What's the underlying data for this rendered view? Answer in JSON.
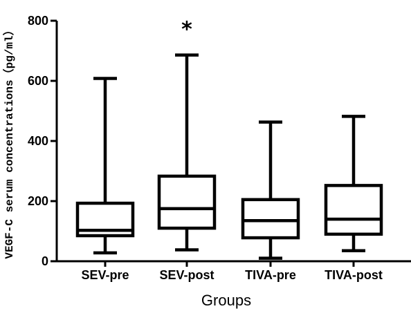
{
  "chart_data": {
    "type": "boxplot",
    "title": "",
    "xlabel": "Groups",
    "ylabel": "VEGF-C serum concentrations（pg/ml）",
    "ylim": [
      0,
      800
    ],
    "yticks": [
      "0",
      "200",
      "400",
      "600",
      "800"
    ],
    "categories": [
      "SEV-pre",
      "SEV-post",
      "TIVA-pre",
      "TIVA-post"
    ],
    "boxes": [
      {
        "min": 28,
        "q1": 85,
        "median": 103,
        "q3": 193,
        "max": 608
      },
      {
        "min": 38,
        "q1": 110,
        "median": 175,
        "q3": 283,
        "max": 686
      },
      {
        "min": 10,
        "q1": 78,
        "median": 135,
        "q3": 205,
        "max": 463
      },
      {
        "min": 35,
        "q1": 90,
        "median": 140,
        "q3": 252,
        "max": 482
      }
    ],
    "annotations": [
      {
        "category": "SEV-post",
        "text": "*"
      }
    ]
  }
}
